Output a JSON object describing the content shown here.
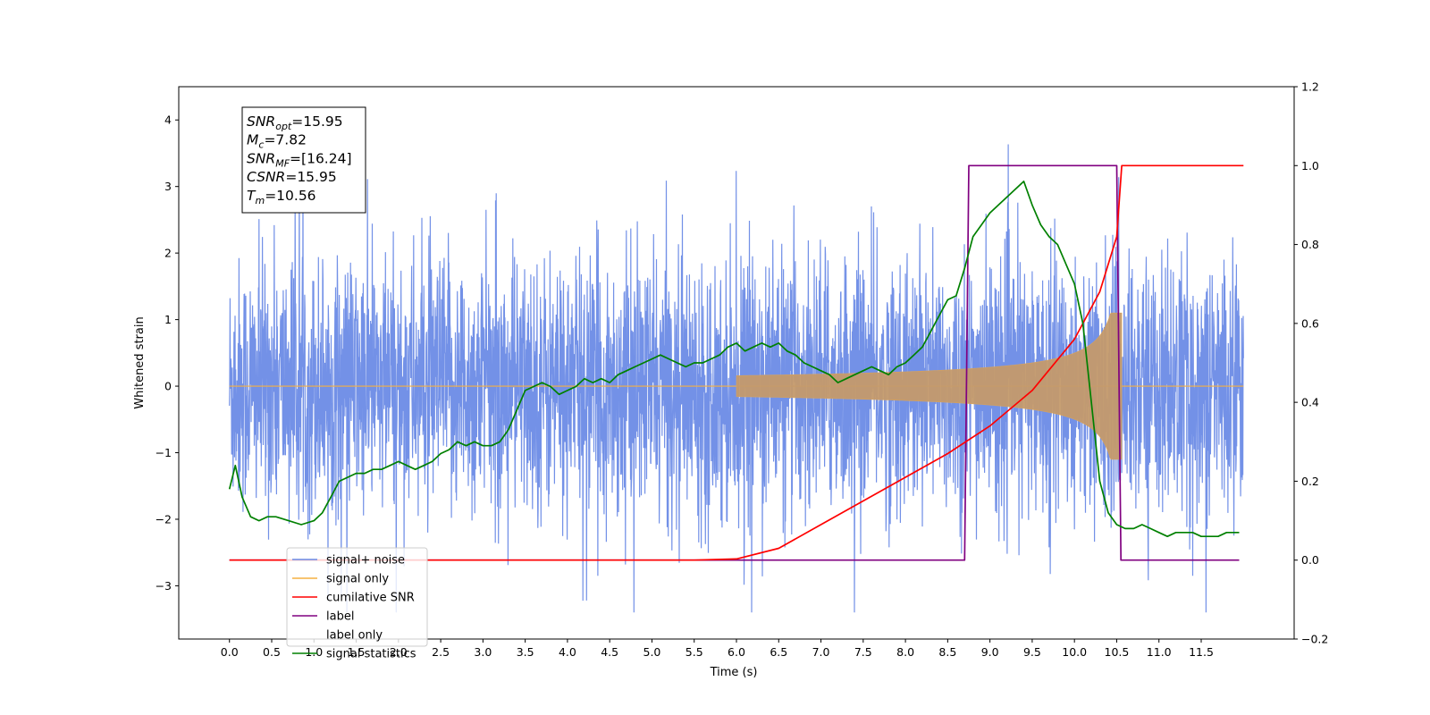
{
  "chart_data": {
    "type": "line",
    "xlabel": "Time (s)",
    "ylabel": "Whitened strain",
    "xlim": [
      -0.6,
      12.6
    ],
    "ylim": [
      -3.8,
      4.5
    ],
    "y2lim": [
      -0.2,
      1.2
    ],
    "grid": false,
    "legend_placement": "lower-left",
    "x_ticks": [
      "0.0",
      "0.5",
      "1.0",
      "1.5",
      "2.0",
      "2.5",
      "3.0",
      "3.5",
      "4.0",
      "4.5",
      "5.0",
      "5.5",
      "6.0",
      "6.5",
      "7.0",
      "7.5",
      "8.0",
      "8.5",
      "9.0",
      "9.5",
      "10.0",
      "10.5",
      "11.0",
      "11.5"
    ],
    "y_ticks": [
      "4",
      "3",
      "2",
      "1",
      "0",
      "−1",
      "−2",
      "−3"
    ],
    "y2_ticks": [
      "1.2",
      "1.0",
      "0.8",
      "0.6",
      "0.4",
      "0.2",
      "0.0",
      "−0.2"
    ],
    "annotation": {
      "lines": [
        {
          "sym": "SNR",
          "sub": "opt",
          "value": "=15.95"
        },
        {
          "sym": "M",
          "sub": "c",
          "value": "=7.82"
        },
        {
          "sym": "SNR",
          "sub": "MF",
          "value": "=[16.24]"
        },
        {
          "sym": "CSNR",
          "sub": "",
          "value": "=15.95"
        },
        {
          "sym": "T",
          "sub": "m",
          "value": "=10.56"
        }
      ]
    },
    "series": [
      {
        "name": "signal+ noise",
        "color": "#6b8be6",
        "axis": "left",
        "envelope_amplitude": 2.4,
        "x_range": [
          0.0,
          12.0
        ]
      },
      {
        "name": "signal only",
        "color": "#f5b041",
        "axis": "left",
        "chirp_start": 6.0,
        "merger_time": 10.56,
        "peak_amplitude": 1.1
      },
      {
        "name": "cumilative SNR",
        "color": "#ff0000",
        "axis": "right",
        "x": [
          0.0,
          5.5,
          6.0,
          6.5,
          7.0,
          7.5,
          8.0,
          8.5,
          9.0,
          9.5,
          10.0,
          10.3,
          10.5,
          10.56,
          12.0
        ],
        "y": [
          0.0,
          0.0,
          0.003,
          0.03,
          0.09,
          0.15,
          0.21,
          0.27,
          0.34,
          0.43,
          0.56,
          0.68,
          0.82,
          1.0,
          1.0
        ]
      },
      {
        "name": "label",
        "color": "#800080",
        "axis": "right",
        "x": [
          0.0,
          8.7,
          8.75,
          10.5,
          10.55,
          11.95
        ],
        "y": [
          0.0,
          0.0,
          1.0,
          1.0,
          0.0,
          0.0
        ]
      },
      {
        "name": "label only",
        "color": "#ffffff",
        "axis": "right",
        "x": [],
        "y": []
      },
      {
        "name": "signal statistics",
        "color": "#008000",
        "axis": "right",
        "x": [
          0.0,
          0.07,
          0.15,
          0.25,
          0.35,
          0.45,
          0.55,
          0.7,
          0.85,
          1.0,
          1.1,
          1.2,
          1.3,
          1.4,
          1.5,
          1.6,
          1.7,
          1.8,
          1.9,
          2.0,
          2.1,
          2.2,
          2.3,
          2.4,
          2.5,
          2.6,
          2.7,
          2.8,
          2.9,
          3.0,
          3.1,
          3.2,
          3.3,
          3.4,
          3.5,
          3.6,
          3.7,
          3.8,
          3.9,
          4.0,
          4.1,
          4.2,
          4.3,
          4.4,
          4.5,
          4.6,
          4.7,
          4.8,
          4.9,
          5.0,
          5.1,
          5.2,
          5.3,
          5.4,
          5.5,
          5.6,
          5.7,
          5.8,
          5.9,
          6.0,
          6.1,
          6.2,
          6.3,
          6.4,
          6.5,
          6.6,
          6.7,
          6.8,
          6.9,
          7.0,
          7.1,
          7.2,
          7.3,
          7.4,
          7.5,
          7.6,
          7.7,
          7.8,
          7.9,
          8.0,
          8.1,
          8.2,
          8.3,
          8.4,
          8.5,
          8.6,
          8.7,
          8.8,
          8.9,
          9.0,
          9.1,
          9.2,
          9.3,
          9.4,
          9.5,
          9.6,
          9.7,
          9.8,
          9.9,
          10.0,
          10.1,
          10.2,
          10.3,
          10.4,
          10.5,
          10.6,
          10.7,
          10.8,
          10.9,
          11.0,
          11.1,
          11.2,
          11.3,
          11.4,
          11.5,
          11.6,
          11.7,
          11.8,
          11.95
        ],
        "y": [
          0.18,
          0.24,
          0.16,
          0.11,
          0.1,
          0.11,
          0.11,
          0.1,
          0.09,
          0.1,
          0.12,
          0.16,
          0.2,
          0.21,
          0.22,
          0.22,
          0.23,
          0.23,
          0.24,
          0.25,
          0.24,
          0.23,
          0.24,
          0.25,
          0.27,
          0.28,
          0.3,
          0.29,
          0.3,
          0.29,
          0.29,
          0.3,
          0.33,
          0.38,
          0.43,
          0.44,
          0.45,
          0.44,
          0.42,
          0.43,
          0.44,
          0.46,
          0.45,
          0.46,
          0.45,
          0.47,
          0.48,
          0.49,
          0.5,
          0.51,
          0.52,
          0.51,
          0.5,
          0.49,
          0.5,
          0.5,
          0.51,
          0.52,
          0.54,
          0.55,
          0.53,
          0.54,
          0.55,
          0.54,
          0.55,
          0.53,
          0.52,
          0.5,
          0.49,
          0.48,
          0.47,
          0.45,
          0.46,
          0.47,
          0.48,
          0.49,
          0.48,
          0.47,
          0.49,
          0.5,
          0.52,
          0.54,
          0.58,
          0.62,
          0.66,
          0.67,
          0.74,
          0.82,
          0.85,
          0.88,
          0.9,
          0.92,
          0.94,
          0.96,
          0.9,
          0.85,
          0.82,
          0.8,
          0.75,
          0.7,
          0.6,
          0.4,
          0.2,
          0.12,
          0.09,
          0.08,
          0.08,
          0.09,
          0.08,
          0.07,
          0.06,
          0.07,
          0.07,
          0.07,
          0.06,
          0.06,
          0.06,
          0.07,
          0.07
        ]
      }
    ]
  }
}
